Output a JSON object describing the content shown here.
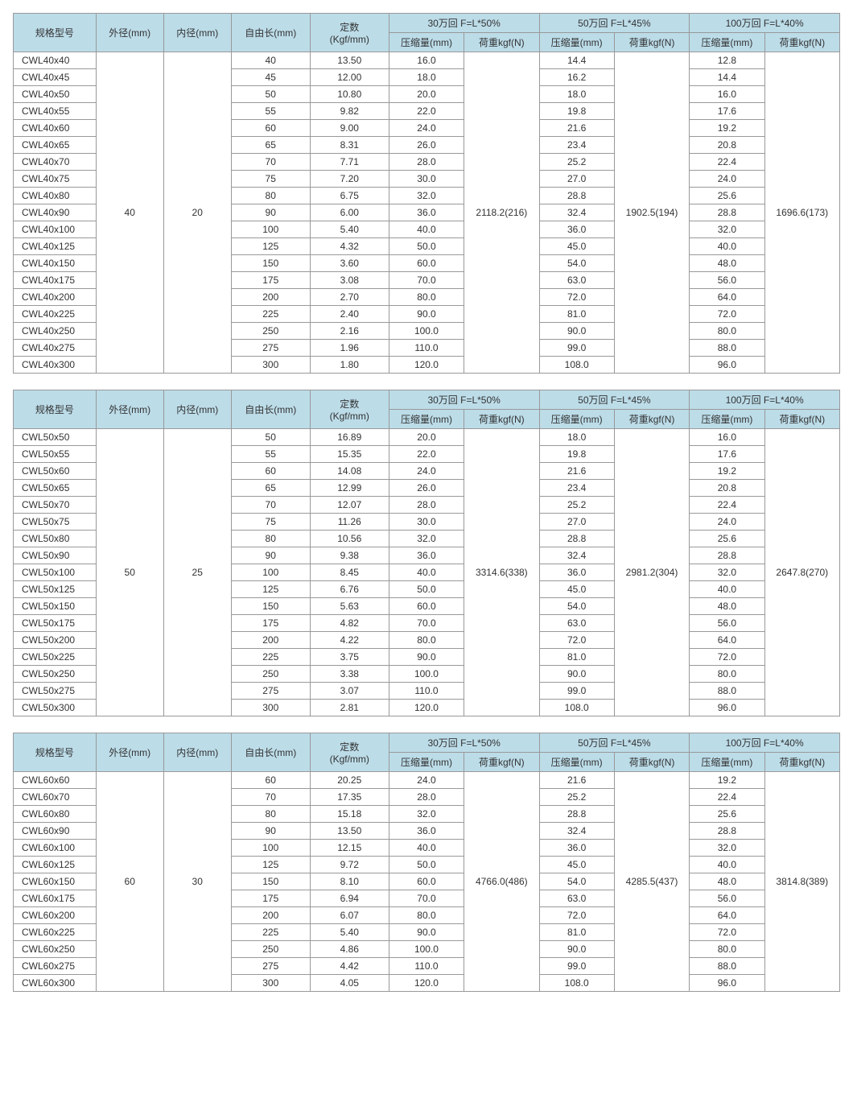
{
  "headers": {
    "model": "规格型号",
    "od": "外径(mm)",
    "id": "内径(mm)",
    "free": "自由长(mm)",
    "k_top": "定数",
    "k_bot": "(Kgf/mm)",
    "g30_top": "30万回  F=L*50%",
    "g50_top": "50万回 F=L*45%",
    "g100_top": "100万回  F=L*40%",
    "comp": "压缩量(mm)",
    "load": "荷重kgf(N)"
  },
  "tables": [
    {
      "od": "40",
      "id": "20",
      "load30": "2118.2(216)",
      "load50": "1902.5(194)",
      "load100": "1696.6(173)",
      "rows": [
        {
          "m": "CWL40x40",
          "f": "40",
          "k": "13.50",
          "c30": "16.0",
          "c50": "14.4",
          "c100": "12.8"
        },
        {
          "m": "CWL40x45",
          "f": "45",
          "k": "12.00",
          "c30": "18.0",
          "c50": "16.2",
          "c100": "14.4"
        },
        {
          "m": "CWL40x50",
          "f": "50",
          "k": "10.80",
          "c30": "20.0",
          "c50": "18.0",
          "c100": "16.0"
        },
        {
          "m": "CWL40x55",
          "f": "55",
          "k": "9.82",
          "c30": "22.0",
          "c50": "19.8",
          "c100": "17.6"
        },
        {
          "m": "CWL40x60",
          "f": "60",
          "k": "9.00",
          "c30": "24.0",
          "c50": "21.6",
          "c100": "19.2"
        },
        {
          "m": "CWL40x65",
          "f": "65",
          "k": "8.31",
          "c30": "26.0",
          "c50": "23.4",
          "c100": "20.8"
        },
        {
          "m": "CWL40x70",
          "f": "70",
          "k": "7.71",
          "c30": "28.0",
          "c50": "25.2",
          "c100": "22.4"
        },
        {
          "m": "CWL40x75",
          "f": "75",
          "k": "7.20",
          "c30": "30.0",
          "c50": "27.0",
          "c100": "24.0"
        },
        {
          "m": "CWL40x80",
          "f": "80",
          "k": "6.75",
          "c30": "32.0",
          "c50": "28.8",
          "c100": "25.6"
        },
        {
          "m": "CWL40x90",
          "f": "90",
          "k": "6.00",
          "c30": "36.0",
          "c50": "32.4",
          "c100": "28.8"
        },
        {
          "m": "CWL40x100",
          "f": "100",
          "k": "5.40",
          "c30": "40.0",
          "c50": "36.0",
          "c100": "32.0"
        },
        {
          "m": "CWL40x125",
          "f": "125",
          "k": "4.32",
          "c30": "50.0",
          "c50": "45.0",
          "c100": "40.0"
        },
        {
          "m": "CWL40x150",
          "f": "150",
          "k": "3.60",
          "c30": "60.0",
          "c50": "54.0",
          "c100": "48.0"
        },
        {
          "m": "CWL40x175",
          "f": "175",
          "k": "3.08",
          "c30": "70.0",
          "c50": "63.0",
          "c100": "56.0"
        },
        {
          "m": "CWL40x200",
          "f": "200",
          "k": "2.70",
          "c30": "80.0",
          "c50": "72.0",
          "c100": "64.0"
        },
        {
          "m": "CWL40x225",
          "f": "225",
          "k": "2.40",
          "c30": "90.0",
          "c50": "81.0",
          "c100": "72.0"
        },
        {
          "m": "CWL40x250",
          "f": "250",
          "k": "2.16",
          "c30": "100.0",
          "c50": "90.0",
          "c100": "80.0"
        },
        {
          "m": "CWL40x275",
          "f": "275",
          "k": "1.96",
          "c30": "110.0",
          "c50": "99.0",
          "c100": "88.0"
        },
        {
          "m": "CWL40x300",
          "f": "300",
          "k": "1.80",
          "c30": "120.0",
          "c50": "108.0",
          "c100": "96.0"
        }
      ]
    },
    {
      "od": "50",
      "id": "25",
      "load30": "3314.6(338)",
      "load50": "2981.2(304)",
      "load100": "2647.8(270)",
      "rows": [
        {
          "m": "CWL50x50",
          "f": "50",
          "k": "16.89",
          "c30": "20.0",
          "c50": "18.0",
          "c100": "16.0"
        },
        {
          "m": "CWL50x55",
          "f": "55",
          "k": "15.35",
          "c30": "22.0",
          "c50": "19.8",
          "c100": "17.6"
        },
        {
          "m": "CWL50x60",
          "f": "60",
          "k": "14.08",
          "c30": "24.0",
          "c50": "21.6",
          "c100": "19.2"
        },
        {
          "m": "CWL50x65",
          "f": "65",
          "k": "12.99",
          "c30": "26.0",
          "c50": "23.4",
          "c100": "20.8"
        },
        {
          "m": "CWL50x70",
          "f": "70",
          "k": "12.07",
          "c30": "28.0",
          "c50": "25.2",
          "c100": "22.4"
        },
        {
          "m": "CWL50x75",
          "f": "75",
          "k": "11.26",
          "c30": "30.0",
          "c50": "27.0",
          "c100": "24.0"
        },
        {
          "m": "CWL50x80",
          "f": "80",
          "k": "10.56",
          "c30": "32.0",
          "c50": "28.8",
          "c100": "25.6"
        },
        {
          "m": "CWL50x90",
          "f": "90",
          "k": "9.38",
          "c30": "36.0",
          "c50": "32.4",
          "c100": "28.8"
        },
        {
          "m": "CWL50x100",
          "f": "100",
          "k": "8.45",
          "c30": "40.0",
          "c50": "36.0",
          "c100": "32.0"
        },
        {
          "m": "CWL50x125",
          "f": "125",
          "k": "6.76",
          "c30": "50.0",
          "c50": "45.0",
          "c100": "40.0"
        },
        {
          "m": "CWL50x150",
          "f": "150",
          "k": "5.63",
          "c30": "60.0",
          "c50": "54.0",
          "c100": "48.0"
        },
        {
          "m": "CWL50x175",
          "f": "175",
          "k": "4.82",
          "c30": "70.0",
          "c50": "63.0",
          "c100": "56.0"
        },
        {
          "m": "CWL50x200",
          "f": "200",
          "k": "4.22",
          "c30": "80.0",
          "c50": "72.0",
          "c100": "64.0"
        },
        {
          "m": "CWL50x225",
          "f": "225",
          "k": "3.75",
          "c30": "90.0",
          "c50": "81.0",
          "c100": "72.0"
        },
        {
          "m": "CWL50x250",
          "f": "250",
          "k": "3.38",
          "c30": "100.0",
          "c50": "90.0",
          "c100": "80.0"
        },
        {
          "m": "CWL50x275",
          "f": "275",
          "k": "3.07",
          "c30": "110.0",
          "c50": "99.0",
          "c100": "88.0"
        },
        {
          "m": "CWL50x300",
          "f": "300",
          "k": "2.81",
          "c30": "120.0",
          "c50": "108.0",
          "c100": "96.0"
        }
      ]
    },
    {
      "od": "60",
      "id": "30",
      "load30": "4766.0(486)",
      "load50": "4285.5(437)",
      "load100": "3814.8(389)",
      "rows": [
        {
          "m": "CWL60x60",
          "f": "60",
          "k": "20.25",
          "c30": "24.0",
          "c50": "21.6",
          "c100": "19.2"
        },
        {
          "m": "CWL60x70",
          "f": "70",
          "k": "17.35",
          "c30": "28.0",
          "c50": "25.2",
          "c100": "22.4"
        },
        {
          "m": "CWL60x80",
          "f": "80",
          "k": "15.18",
          "c30": "32.0",
          "c50": "28.8",
          "c100": "25.6"
        },
        {
          "m": "CWL60x90",
          "f": "90",
          "k": "13.50",
          "c30": "36.0",
          "c50": "32.4",
          "c100": "28.8"
        },
        {
          "m": "CWL60x100",
          "f": "100",
          "k": "12.15",
          "c30": "40.0",
          "c50": "36.0",
          "c100": "32.0"
        },
        {
          "m": "CWL60x125",
          "f": "125",
          "k": "9.72",
          "c30": "50.0",
          "c50": "45.0",
          "c100": "40.0"
        },
        {
          "m": "CWL60x150",
          "f": "150",
          "k": "8.10",
          "c30": "60.0",
          "c50": "54.0",
          "c100": "48.0"
        },
        {
          "m": "CWL60x175",
          "f": "175",
          "k": "6.94",
          "c30": "70.0",
          "c50": "63.0",
          "c100": "56.0"
        },
        {
          "m": "CWL60x200",
          "f": "200",
          "k": "6.07",
          "c30": "80.0",
          "c50": "72.0",
          "c100": "64.0"
        },
        {
          "m": "CWL60x225",
          "f": "225",
          "k": "5.40",
          "c30": "90.0",
          "c50": "81.0",
          "c100": "72.0"
        },
        {
          "m": "CWL60x250",
          "f": "250",
          "k": "4.86",
          "c30": "100.0",
          "c50": "90.0",
          "c100": "80.0"
        },
        {
          "m": "CWL60x275",
          "f": "275",
          "k": "4.42",
          "c30": "110.0",
          "c50": "99.0",
          "c100": "88.0"
        },
        {
          "m": "CWL60x300",
          "f": "300",
          "k": "4.05",
          "c30": "120.0",
          "c50": "108.0",
          "c100": "96.0"
        }
      ]
    }
  ]
}
